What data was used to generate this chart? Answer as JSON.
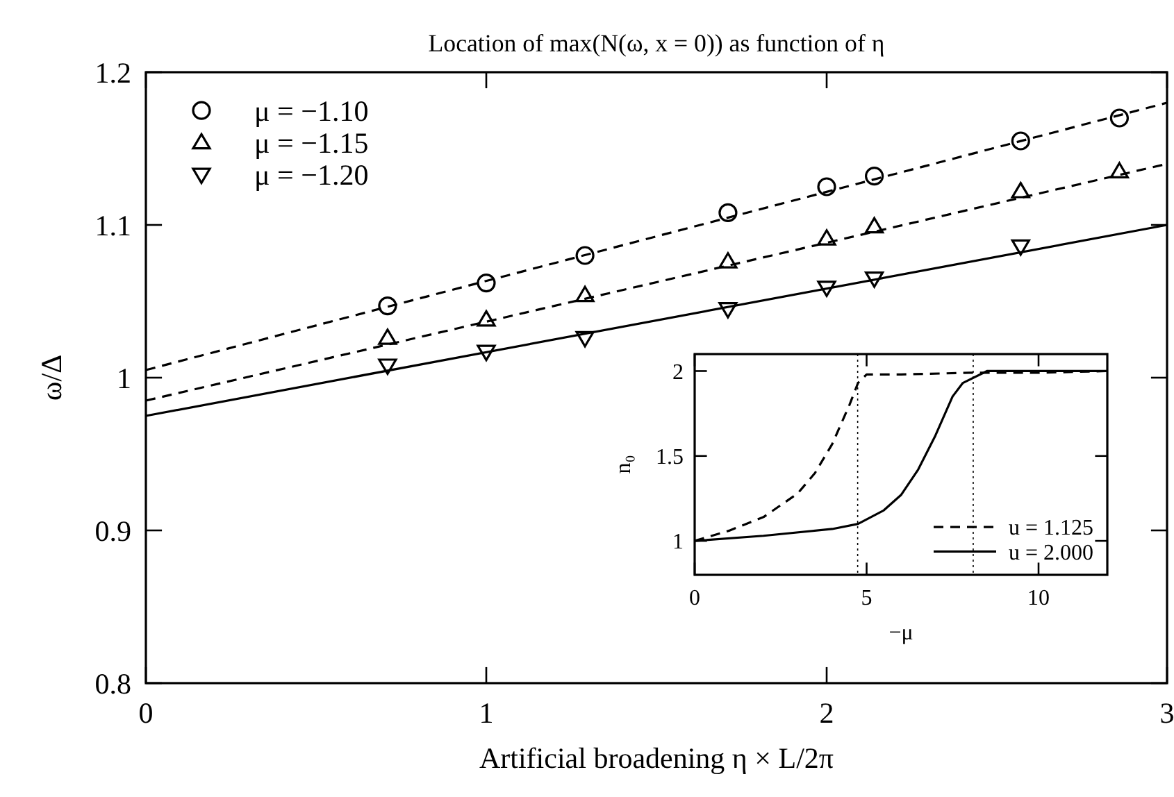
{
  "chart_data": [
    {
      "type": "scatter",
      "title": "Location of max(N(ω, x = 0)) as function of η",
      "xlabel": "Artificial broadening η × L/2π",
      "ylabel": "ω/Δ",
      "xlim": [
        0,
        3
      ],
      "xticks": [
        0,
        1,
        2,
        3
      ],
      "ylim": [
        0.8,
        1.2
      ],
      "yticks": [
        0.8,
        0.9,
        1,
        1.1,
        1.2
      ],
      "grid": false,
      "legend": "top left",
      "series": [
        {
          "name": "μ = −1.10",
          "color": "#000000",
          "marker": "circle",
          "x": [
            0.71,
            1,
            1.29,
            1.71,
            2,
            2.14,
            2.57,
            2.86
          ],
          "values": [
            1.047,
            1.062,
            1.08,
            1.108,
            1.125,
            1.132,
            1.155,
            1.17
          ]
        },
        {
          "name": "μ = −1.15",
          "color": "#000000",
          "marker": "triangle",
          "x": [
            0.71,
            1,
            1.29,
            1.71,
            2,
            2.14,
            2.57,
            2.86
          ],
          "values": [
            1.026,
            1.038,
            1.054,
            1.076,
            1.091,
            1.099,
            1.122,
            1.135
          ]
        },
        {
          "name": "μ = −1.20",
          "color": "#000000",
          "marker": "triangle-down",
          "x": [
            0.71,
            1,
            1.29,
            1.71,
            2,
            2.14,
            2.57
          ],
          "values": [
            1.008,
            1.017,
            1.026,
            1.045,
            1.059,
            1.065,
            1.086
          ]
        },
        {
          "type": "line",
          "color": "#000000",
          "line_style": "dashed",
          "x": [
            0,
            3
          ],
          "values": [
            1.005,
            1.18
          ]
        },
        {
          "type": "line",
          "color": "#000000",
          "line_style": "dashed",
          "x": [
            0,
            3
          ],
          "values": [
            0.985,
            1.14
          ]
        },
        {
          "type": "line",
          "color": "#000000",
          "line_style": "solid",
          "x": [
            0,
            3
          ],
          "values": [
            0.975,
            1.1
          ]
        }
      ]
    },
    {
      "type": "line",
      "xlabel": "−μ",
      "ylabel": "n₀",
      "xlim": [
        0,
        12
      ],
      "xticks": [
        0,
        5,
        10
      ],
      "ylim": [
        0.8,
        2.1
      ],
      "yticks": [
        1,
        1.5,
        2
      ],
      "grid": false,
      "legend": "bottom right",
      "ref_lines": [
        {
          "axis": "x",
          "value": 4.74,
          "line_style": "dotted",
          "color": "#000000"
        },
        {
          "axis": "x",
          "value": 8.1,
          "line_style": "dotted",
          "color": "#000000"
        }
      ],
      "series": [
        {
          "name": "u = 1.125",
          "color": "#000000",
          "line_style": "dashed",
          "x": [
            0,
            1,
            2,
            3,
            3.5,
            4,
            4.5,
            4.75,
            5,
            6,
            8,
            10,
            12
          ],
          "values": [
            1,
            1.06,
            1.14,
            1.28,
            1.4,
            1.57,
            1.8,
            1.93,
            1.98,
            1.98,
            1.99,
            1.99,
            2
          ]
        },
        {
          "name": "u = 2.000",
          "color": "#000000",
          "line_style": "solid",
          "x": [
            0,
            2,
            4,
            4.75,
            5.5,
            6,
            6.5,
            7,
            7.5,
            7.8,
            8.5,
            10,
            12
          ],
          "values": [
            1,
            1.03,
            1.07,
            1.1,
            1.18,
            1.27,
            1.42,
            1.62,
            1.85,
            1.93,
            2,
            2,
            2
          ]
        }
      ]
    }
  ]
}
